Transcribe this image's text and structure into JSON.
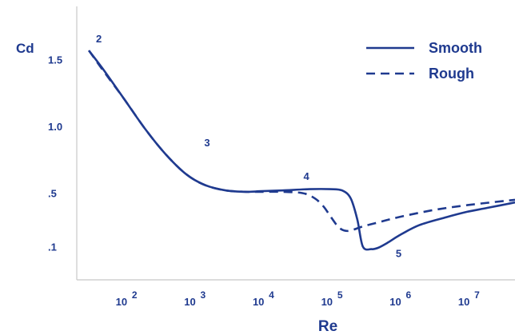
{
  "colors": {
    "line": "#1f3a8f",
    "axis": "#c8c8c8",
    "text": "#1f3a8f"
  },
  "chart_data": {
    "type": "line",
    "title": "",
    "xlabel": "Re",
    "ylabel": "Cd",
    "x_scale": "log",
    "xlim": [
      20,
      50000000
    ],
    "ylim": [
      -0.15,
      1.9
    ],
    "x_tick_labels": [
      {
        "x": 100,
        "base": "10",
        "exp": "2"
      },
      {
        "x": 1000,
        "base": "10",
        "exp": "3"
      },
      {
        "x": 10000,
        "base": "10",
        "exp": "4"
      },
      {
        "x": 100000,
        "base": "10",
        "exp": "5"
      },
      {
        "x": 1000000,
        "base": "10",
        "exp": "6"
      },
      {
        "x": 10000000,
        "base": "10",
        "exp": "7"
      }
    ],
    "y_tick_labels": [
      {
        "y": 1.5,
        "label": "1.5"
      },
      {
        "y": 1.0,
        "label": "1.0"
      },
      {
        "y": 0.5,
        "label": ".5"
      },
      {
        "y": 0.1,
        "label": ".1"
      }
    ],
    "legend": {
      "placement": "top-right",
      "entries": [
        "Smooth",
        "Rough"
      ]
    },
    "series": [
      {
        "name": "Smooth",
        "style": "solid",
        "x": [
          30,
          50,
          100,
          200,
          400,
          800,
          1500,
          3000,
          6000,
          10000,
          20000,
          50000,
          100000,
          150000,
          200000,
          250000,
          300000,
          400000,
          500000,
          700000,
          1000000,
          2000000,
          5000000,
          10000000,
          20000000,
          50000000
        ],
        "y": [
          1.57,
          1.42,
          1.2,
          0.98,
          0.79,
          0.64,
          0.56,
          0.52,
          0.51,
          0.515,
          0.52,
          0.53,
          0.53,
          0.52,
          0.46,
          0.3,
          0.1,
          0.08,
          0.09,
          0.13,
          0.18,
          0.26,
          0.32,
          0.36,
          0.39,
          0.43
        ]
      },
      {
        "name": "Rough",
        "style": "dashed",
        "x": [
          30,
          50,
          100,
          200,
          400,
          800,
          1500,
          3000,
          6000,
          10000,
          20000,
          40000,
          60000,
          80000,
          100000,
          130000,
          160000,
          200000,
          300000,
          500000,
          1000000,
          3000000,
          10000000,
          50000000
        ],
        "y": [
          1.57,
          1.41,
          1.2,
          0.98,
          0.79,
          0.64,
          0.56,
          0.52,
          0.51,
          0.51,
          0.51,
          0.5,
          0.46,
          0.4,
          0.33,
          0.25,
          0.22,
          0.22,
          0.25,
          0.28,
          0.32,
          0.37,
          0.41,
          0.45
        ]
      }
    ],
    "annotations": [
      {
        "label": "2",
        "x": 42,
        "y": 1.63
      },
      {
        "label": "3",
        "x": 1600,
        "y": 0.85
      },
      {
        "label": "4",
        "x": 45000,
        "y": 0.6
      },
      {
        "label": "5",
        "x": 1000000,
        "y": 0.02
      }
    ]
  }
}
